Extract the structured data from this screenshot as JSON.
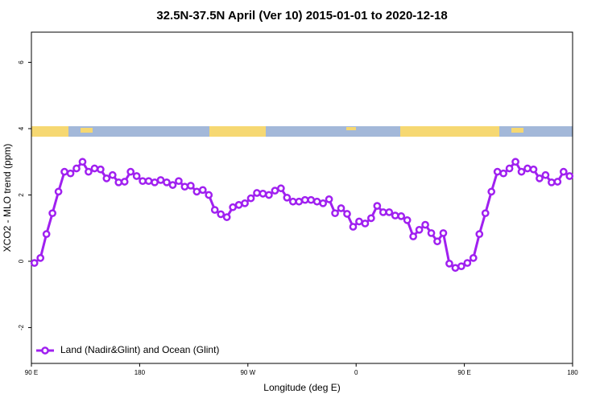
{
  "chart_data": {
    "type": "line",
    "title": "32.5N-37.5N April (Ver 10)   2015-01-01 to 2020-12-18",
    "x_label": "Longitude (deg E)",
    "y_label": "XCO2 - MLO trend (ppm)",
    "xlim": [
      90,
      540
    ],
    "ylim": [
      -3.08,
      6.91
    ],
    "xticks": [
      {
        "value": 90,
        "label": "90 E"
      },
      180,
      {
        "value": 270,
        "label": "90 W"
      },
      {
        "value": 360,
        "label": "0"
      },
      {
        "value": 450,
        "label": "90 E"
      },
      {
        "value": 540,
        "label": "180"
      }
    ],
    "yticks": [
      -2,
      0,
      2,
      4,
      6
    ],
    "legend": "bottom-left",
    "x": [
      92.5,
      97.5,
      102.5,
      107.5,
      112.5,
      117.5,
      122.5,
      127.5,
      132.5,
      137.5,
      142.5,
      147.5,
      152.5,
      157.5,
      162.5,
      167.5,
      172.5,
      177.5,
      182.5,
      187.5,
      192.5,
      197.5,
      202.5,
      207.5,
      212.5,
      217.5,
      222.5,
      227.5,
      232.5,
      237.5,
      242.5,
      247.5,
      252.5,
      257.5,
      262.5,
      267.5,
      272.5,
      277.5,
      282.5,
      287.5,
      292.5,
      297.5,
      302.5,
      307.5,
      312.5,
      317.5,
      322.5,
      327.5,
      332.5,
      337.5,
      342.5,
      347.5,
      352.5,
      357.5,
      362.5,
      367.5,
      372.5,
      377.5,
      382.5,
      387.5,
      392.5,
      397.5,
      402.5,
      407.5,
      412.5,
      417.5,
      422.5,
      427.5,
      432.5,
      437.5,
      442.5,
      447.5,
      452.5,
      457.5,
      462.5,
      467.5,
      472.5,
      477.5,
      482.5,
      487.5,
      492.5,
      497.5,
      502.5,
      507.5,
      512.5,
      517.5,
      522.5,
      527.5,
      532.5,
      537.5
    ],
    "series": [
      {
        "name": "Land (Nadir&Glint) and Ocean (Glint)",
        "color": "#a020f0",
        "values": [
          -0.05,
          0.1,
          0.82,
          1.45,
          2.1,
          2.7,
          2.65,
          2.8,
          3.0,
          2.7,
          2.8,
          2.77,
          2.5,
          2.6,
          2.38,
          2.4,
          2.7,
          2.57,
          2.42,
          2.42,
          2.38,
          2.45,
          2.38,
          2.3,
          2.42,
          2.25,
          2.28,
          2.1,
          2.15,
          2.0,
          1.55,
          1.42,
          1.33,
          1.63,
          1.7,
          1.75,
          1.9,
          2.06,
          2.04,
          2.0,
          2.13,
          2.2,
          1.92,
          1.8,
          1.8,
          1.85,
          1.85,
          1.8,
          1.75,
          1.87,
          1.45,
          1.6,
          1.43,
          1.04,
          1.2,
          1.14,
          1.3,
          1.67,
          1.48,
          1.48,
          1.38,
          1.36,
          1.24,
          0.75,
          0.95,
          1.1,
          0.85,
          0.6,
          0.85,
          -0.07,
          -0.2,
          -0.15,
          -0.05,
          0.1,
          0.82,
          1.45,
          2.1,
          2.7,
          2.65,
          2.8,
          3.0,
          2.7,
          2.8,
          2.77,
          2.5,
          2.6,
          2.38,
          2.4,
          2.7,
          2.57
        ]
      }
    ]
  }
}
